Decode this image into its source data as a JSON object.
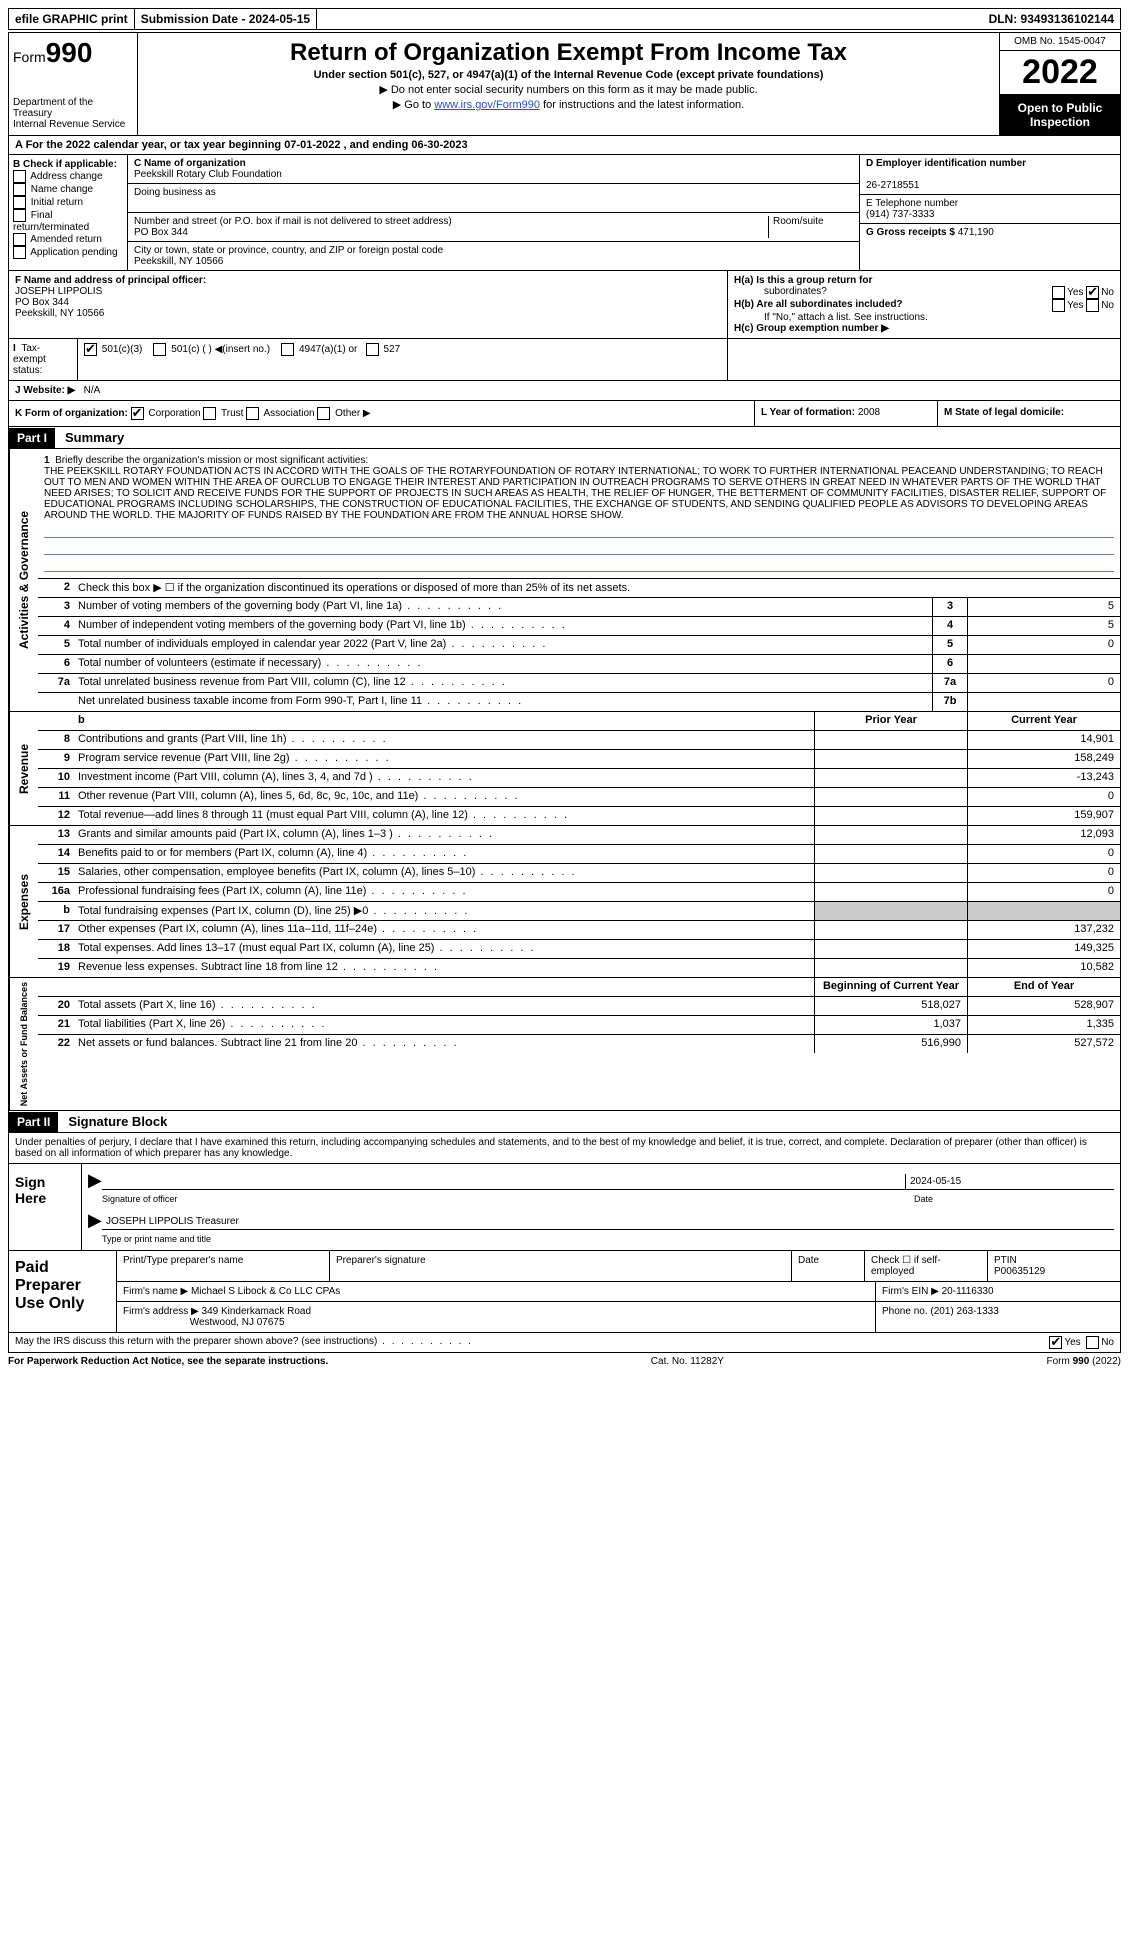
{
  "top": {
    "efile": "efile GRAPHIC print",
    "submission_label": "Submission Date - 2024-05-15",
    "dln": "DLN: 93493136102144"
  },
  "header": {
    "form_prefix": "Form",
    "form_number": "990",
    "dept": "Department of the Treasury",
    "irs": "Internal Revenue Service",
    "title": "Return of Organization Exempt From Income Tax",
    "subtitle": "Under section 501(c), 527, or 4947(a)(1) of the Internal Revenue Code (except private foundations)",
    "note1": "▶ Do not enter social security numbers on this form as it may be made public.",
    "note2_pre": "▶ Go to ",
    "note2_link": "www.irs.gov/Form990",
    "note2_post": " for instructions and the latest information.",
    "omb": "OMB No. 1545-0047",
    "year": "2022",
    "open": "Open to Public Inspection"
  },
  "lineA": "A For the 2022 calendar year, or tax year beginning 07-01-2022   , and ending 06-30-2023",
  "B": {
    "heading": "B Check if applicable:",
    "items": [
      "Address change",
      "Name change",
      "Initial return",
      "Final return/terminated",
      "Amended return",
      "Application pending"
    ]
  },
  "C": {
    "label": "C Name of organization",
    "org_name": "Peekskill Rotary Club Foundation",
    "dba_label": "Doing business as",
    "street_label": "Number and street (or P.O. box if mail is not delivered to street address)",
    "room_label": "Room/suite",
    "street": "PO Box 344",
    "city_label": "City or town, state or province, country, and ZIP or foreign postal code",
    "city": "Peekskill, NY  10566"
  },
  "D": {
    "label": "D Employer identification number",
    "value": "26-2718551"
  },
  "E": {
    "label": "E Telephone number",
    "value": "(914) 737-3333"
  },
  "G": {
    "label": "G Gross receipts $",
    "value": "471,190"
  },
  "F": {
    "label": "F  Name and address of principal officer:",
    "name": "JOSEPH LIPPOLIS",
    "line2": "PO Box 344",
    "line3": "Peekskill, NY  10566"
  },
  "H": {
    "a_label": "H(a)  Is this a group return for",
    "a_label2": "subordinates?",
    "b_label": "H(b)  Are all subordinates included?",
    "b_note": "If \"No,\" attach a list. See instructions.",
    "c_label": "H(c)  Group exemption number ▶"
  },
  "I": {
    "label": "Tax-exempt status:",
    "opt1": "501(c)(3)",
    "opt2": "501(c) (  ) ◀(insert no.)",
    "opt3": "4947(a)(1) or",
    "opt4": "527"
  },
  "J": {
    "label": "J Website: ▶",
    "value": "N/A"
  },
  "K": {
    "label": "K Form of organization:",
    "opts": [
      "Corporation",
      "Trust",
      "Association",
      "Other ▶"
    ]
  },
  "L": {
    "label": "L Year of formation:",
    "value": "2008"
  },
  "M": {
    "label": "M State of legal domicile:"
  },
  "part1": {
    "label": "Part I",
    "title": "Summary"
  },
  "mission": {
    "num": "1",
    "label": "Briefly describe the organization's mission or most significant activities:",
    "text": "THE PEEKSKILL ROTARY FOUNDATION ACTS IN ACCORD WITH THE GOALS OF THE ROTARYFOUNDATION OF ROTARY INTERNATIONAL; TO WORK TO FURTHER INTERNATIONAL PEACEAND UNDERSTANDING; TO REACH OUT TO MEN AND WOMEN WITHIN THE AREA OF OURCLUB TO ENGAGE THEIR INTEREST AND PARTICIPATION IN OUTREACH PROGRAMS TO SERVE OTHERS IN GREAT NEED IN WHATEVER PARTS OF THE WORLD THAT NEED ARISES; TO SOLICIT AND RECEIVE FUNDS FOR THE SUPPORT OF PROJECTS IN SUCH AREAS AS HEALTH, THE RELIEF OF HUNGER, THE BETTERMENT OF COMMUNITY FACILITIES, DISASTER RELIEF, SUPPORT OF EDUCATIONAL PROGRAMS INCLUDING SCHOLARSHIPS, THE CONSTRUCTION OF EDUCATIONAL FACILITIES, THE EXCHANGE OF STUDENTS, AND SENDING QUALIFIED PEOPLE AS ADVISORS TO DEVELOPING AREAS AROUND THE WORLD. THE MAJORITY OF FUNDS RAISED BY THE FOUNDATION ARE FROM THE ANNUAL HORSE SHOW."
  },
  "gov_lines": {
    "l2": "Check this box ▶ ☐ if the organization discontinued its operations or disposed of more than 25% of its net assets.",
    "l3": {
      "desc": "Number of voting members of the governing body (Part VI, line 1a)",
      "box": "3",
      "val": "5"
    },
    "l4": {
      "desc": "Number of independent voting members of the governing body (Part VI, line 1b)",
      "box": "4",
      "val": "5"
    },
    "l5": {
      "desc": "Total number of individuals employed in calendar year 2022 (Part V, line 2a)",
      "box": "5",
      "val": "0"
    },
    "l6": {
      "desc": "Total number of volunteers (estimate if necessary)",
      "box": "6",
      "val": ""
    },
    "l7a": {
      "desc": "Total unrelated business revenue from Part VIII, column (C), line 12",
      "box": "7a",
      "val": "0"
    },
    "l7b": {
      "desc": "Net unrelated business taxable income from Form 990-T, Part I, line 11",
      "box": "7b",
      "val": ""
    }
  },
  "cols": {
    "prior": "Prior Year",
    "current": "Current Year",
    "begin": "Beginning of Current Year",
    "end": "End of Year"
  },
  "revenue": [
    {
      "n": "8",
      "d": "Contributions and grants (Part VIII, line 1h)",
      "p": "",
      "c": "14,901"
    },
    {
      "n": "9",
      "d": "Program service revenue (Part VIII, line 2g)",
      "p": "",
      "c": "158,249"
    },
    {
      "n": "10",
      "d": "Investment income (Part VIII, column (A), lines 3, 4, and 7d )",
      "p": "",
      "c": "-13,243"
    },
    {
      "n": "11",
      "d": "Other revenue (Part VIII, column (A), lines 5, 6d, 8c, 9c, 10c, and 11e)",
      "p": "",
      "c": "0"
    },
    {
      "n": "12",
      "d": "Total revenue—add lines 8 through 11 (must equal Part VIII, column (A), line 12)",
      "p": "",
      "c": "159,907"
    }
  ],
  "expenses": [
    {
      "n": "13",
      "d": "Grants and similar amounts paid (Part IX, column (A), lines 1–3 )",
      "p": "",
      "c": "12,093"
    },
    {
      "n": "14",
      "d": "Benefits paid to or for members (Part IX, column (A), line 4)",
      "p": "",
      "c": "0"
    },
    {
      "n": "15",
      "d": "Salaries, other compensation, employee benefits (Part IX, column (A), lines 5–10)",
      "p": "",
      "c": "0"
    },
    {
      "n": "16a",
      "d": "Professional fundraising fees (Part IX, column (A), line 11e)",
      "p": "",
      "c": "0"
    },
    {
      "n": "b",
      "d": "Total fundraising expenses (Part IX, column (D), line 25) ▶0",
      "p": "shaded",
      "c": "shaded"
    },
    {
      "n": "17",
      "d": "Other expenses (Part IX, column (A), lines 11a–11d, 11f–24e)",
      "p": "",
      "c": "137,232"
    },
    {
      "n": "18",
      "d": "Total expenses. Add lines 13–17 (must equal Part IX, column (A), line 25)",
      "p": "",
      "c": "149,325"
    },
    {
      "n": "19",
      "d": "Revenue less expenses. Subtract line 18 from line 12",
      "p": "",
      "c": "10,582"
    }
  ],
  "netassets": [
    {
      "n": "20",
      "d": "Total assets (Part X, line 16)",
      "p": "518,027",
      "c": "528,907"
    },
    {
      "n": "21",
      "d": "Total liabilities (Part X, line 26)",
      "p": "1,037",
      "c": "1,335"
    },
    {
      "n": "22",
      "d": "Net assets or fund balances. Subtract line 21 from line 20",
      "p": "516,990",
      "c": "527,572"
    }
  ],
  "sides": {
    "gov": "Activities & Governance",
    "rev": "Revenue",
    "exp": "Expenses",
    "net": "Net Assets or Fund Balances"
  },
  "part2": {
    "label": "Part II",
    "title": "Signature Block"
  },
  "declare": "Under penalties of perjury, I declare that I have examined this return, including accompanying schedules and statements, and to the best of my knowledge and belief, it is true, correct, and complete. Declaration of preparer (other than officer) is based on all information of which preparer has any knowledge.",
  "sign": {
    "here": "Sign Here",
    "sig_label": "Signature of officer",
    "date_label": "Date",
    "date_val": "2024-05-15",
    "name": "JOSEPH LIPPOLIS  Treasurer",
    "name_label": "Type or print name and title"
  },
  "preparer": {
    "label": "Paid Preparer Use Only",
    "h1": "Print/Type preparer's name",
    "h2": "Preparer's signature",
    "h3": "Date",
    "h4_pre": "Check ☐ if self-employed",
    "h5": "PTIN",
    "ptin": "P00635129",
    "firm_name_label": "Firm's name      ▶",
    "firm_name": "Michael S Libock & Co LLC CPAs",
    "firm_ein_label": "Firm's EIN ▶",
    "firm_ein": "20-1116330",
    "firm_addr_label": "Firm's address ▶",
    "firm_addr1": "349 Kinderkamack Road",
    "firm_addr2": "Westwood, NJ  07675",
    "phone_label": "Phone no.",
    "phone": "(201) 263-1333"
  },
  "discuss": "May the IRS discuss this return with the preparer shown above? (see instructions)",
  "yes": "Yes",
  "no": "No",
  "footer": {
    "left": "For Paperwork Reduction Act Notice, see the separate instructions.",
    "mid": "Cat. No. 11282Y",
    "right_pre": "Form ",
    "right_form": "990",
    "right_post": " (2022)"
  }
}
